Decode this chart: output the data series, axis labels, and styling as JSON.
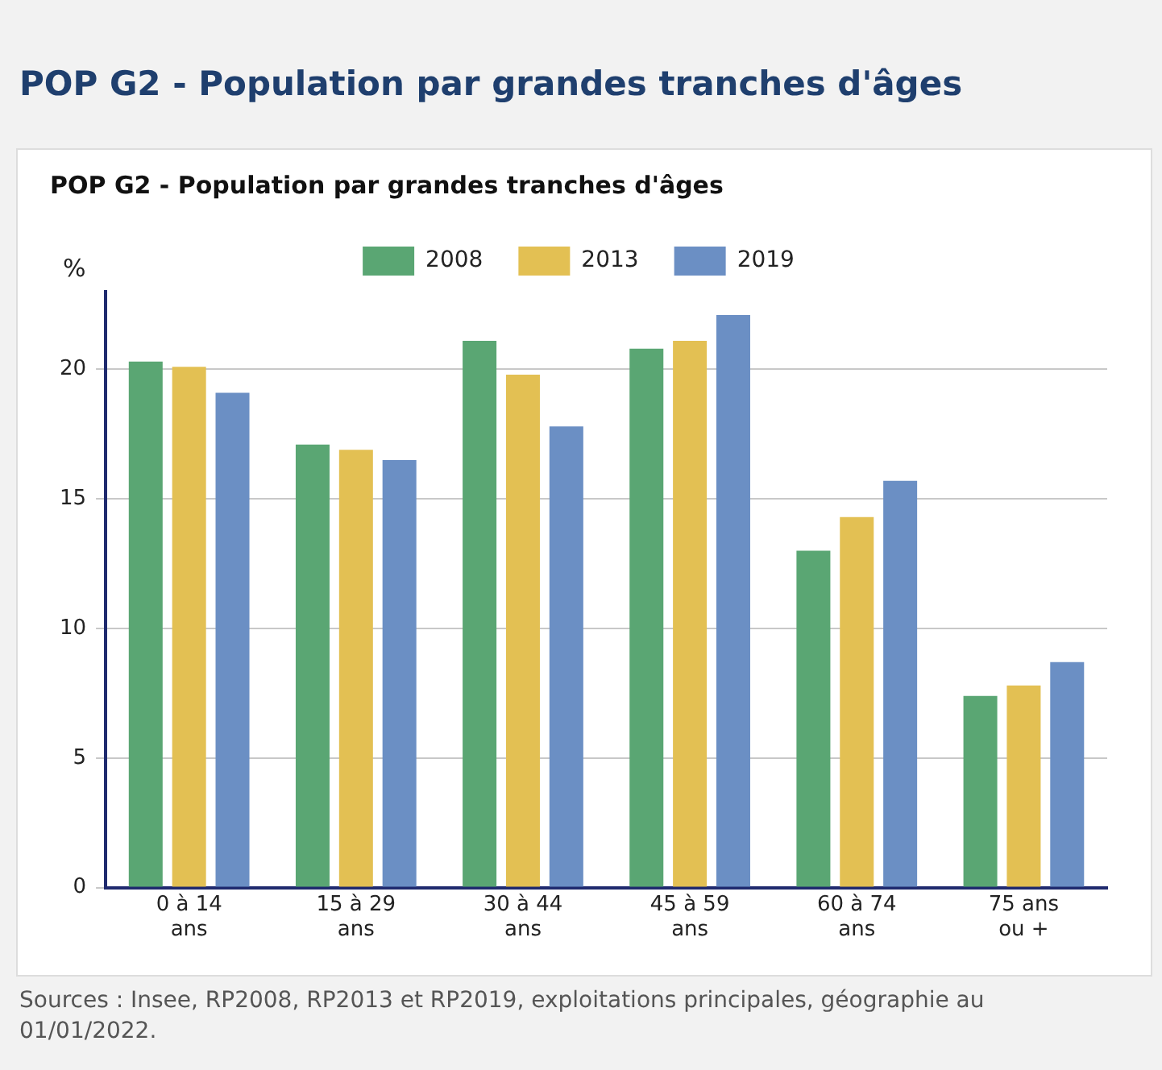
{
  "chart_data": {
    "type": "bar",
    "title": "POP G2 - Population par grandes tranches d'âges",
    "subtitle": "POP G2 - Population par grandes tranches d'âges",
    "ylabel": "%",
    "categories": [
      "0 à 14 ans",
      "15 à 29 ans",
      "30 à 44 ans",
      "45 à 59 ans",
      "60 à 74 ans",
      "75 ans ou +"
    ],
    "series": [
      {
        "name": "2008",
        "color": "#5aa673",
        "values": [
          20.3,
          17.1,
          21.1,
          20.8,
          13.0,
          7.4
        ]
      },
      {
        "name": "2013",
        "color": "#e3c053",
        "values": [
          20.1,
          16.9,
          19.8,
          21.1,
          14.3,
          7.8
        ]
      },
      {
        "name": "2019",
        "color": "#6b8fc4",
        "values": [
          19.1,
          16.5,
          17.8,
          22.1,
          15.7,
          8.7
        ]
      }
    ],
    "ylim": [
      0,
      23
    ],
    "yticks": [
      0,
      5,
      10,
      15,
      20
    ],
    "grid": "y",
    "legend": "top",
    "annotations": [
      "Sources : Insee, RP2008, RP2013 et RP2019, exploitations principales, géographie au 01/01/2022."
    ]
  }
}
